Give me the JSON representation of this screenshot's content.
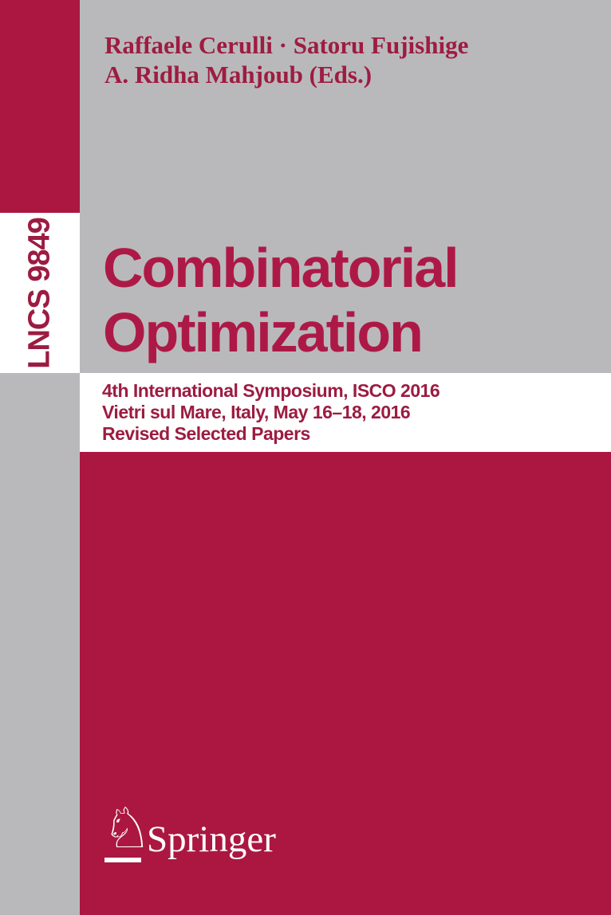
{
  "cover": {
    "spine": {
      "series_label": "LNCS 9849"
    },
    "header": {
      "authors_line1": "Raffaele Cerulli · Satoru Fujishige",
      "authors_line2": "A. Ridha Mahjoub (Eds.)"
    },
    "title": {
      "line1": "Combinatorial",
      "line2": "Optimization"
    },
    "subtitle": {
      "line1": "4th International Symposium, ISCO 2016",
      "line2": "Vietri sul Mare, Italy, May 16–18, 2016",
      "line3": "Revised Selected Papers"
    },
    "publisher": {
      "name": "Springer",
      "logo_icon": "springer-horse-knight-icon",
      "logo_glyph": "♘"
    },
    "colors": {
      "surface_red": "#ab1740",
      "surface_gray": "#b9b9bb",
      "band_white": "#ffffff",
      "text_red": "#9e1c41",
      "title_red": "#ad1947",
      "logo_white": "#ffffff"
    }
  }
}
